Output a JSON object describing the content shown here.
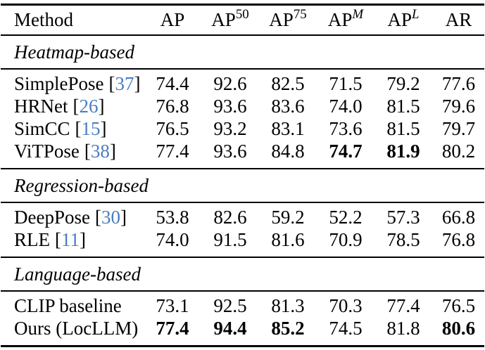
{
  "punct": {
    "open": "[",
    "close": "]"
  },
  "colors": {
    "citation_blue": "#4a7dc0",
    "text": "#000000",
    "rule": "#000000"
  },
  "table": {
    "header": {
      "method": "Method",
      "cols": [
        {
          "base": "AP",
          "sup": ""
        },
        {
          "base": "AP",
          "sup": "50"
        },
        {
          "base": "AP",
          "sup": "75"
        },
        {
          "base": "AP",
          "sup": "M"
        },
        {
          "base": "AP",
          "sup": "L"
        },
        {
          "base": "AR",
          "sup": ""
        }
      ]
    },
    "sections": [
      {
        "label": "Heatmap-based",
        "rows": [
          {
            "name": "SimplePose",
            "cite": "37",
            "values": [
              "74.4",
              "92.6",
              "82.5",
              "71.5",
              "79.2",
              "77.6"
            ],
            "bold": []
          },
          {
            "name": "HRNet",
            "cite": "26",
            "values": [
              "76.8",
              "93.6",
              "83.6",
              "74.0",
              "81.5",
              "79.6"
            ],
            "bold": []
          },
          {
            "name": "SimCC",
            "cite": "15",
            "values": [
              "76.5",
              "93.2",
              "83.1",
              "73.6",
              "81.5",
              "79.7"
            ],
            "bold": []
          },
          {
            "name": "ViTPose",
            "cite": "38",
            "values": [
              "77.4",
              "93.6",
              "84.8",
              "74.7",
              "81.9",
              "80.2"
            ],
            "bold": [
              3,
              4
            ]
          }
        ]
      },
      {
        "label": "Regression-based",
        "rows": [
          {
            "name": "DeepPose",
            "cite": "30",
            "values": [
              "53.8",
              "82.6",
              "59.2",
              "52.2",
              "57.3",
              "66.8"
            ],
            "bold": []
          },
          {
            "name": "RLE",
            "cite": "11",
            "values": [
              "74.0",
              "91.5",
              "81.6",
              "70.9",
              "78.5",
              "76.8"
            ],
            "bold": []
          }
        ]
      },
      {
        "label": "Language-based",
        "rows": [
          {
            "name": "CLIP baseline",
            "cite": null,
            "values": [
              "73.1",
              "92.5",
              "81.3",
              "70.3",
              "77.4",
              "76.5"
            ],
            "bold": []
          },
          {
            "name": "Ours (LocLLM)",
            "cite": null,
            "values": [
              "77.4",
              "94.4",
              "85.2",
              "74.5",
              "81.8",
              "80.6"
            ],
            "bold": [
              0,
              1,
              2,
              5
            ]
          }
        ]
      }
    ]
  }
}
